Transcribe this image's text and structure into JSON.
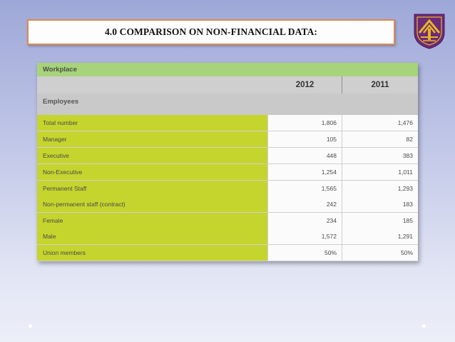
{
  "slide": {
    "title": "4.0 COMPARISON ON NON-FINANCIAL DATA:"
  },
  "logo": {
    "icon": "university-crest-icon",
    "colors": {
      "primary": "#6b2a7a",
      "accent": "#e8b422"
    }
  },
  "table": {
    "section_header": "Workplace",
    "columns": [
      "2012",
      "2011"
    ],
    "group_header": "Employees",
    "rows": [
      {
        "label": "Total number",
        "v2012": "1,806",
        "v2011": "1,476"
      },
      {
        "label": "Manager",
        "v2012": "105",
        "v2011": "82"
      },
      {
        "label": "Executive",
        "v2012": "448",
        "v2011": "383"
      },
      {
        "label": "Non-Executive",
        "v2012": "1,254",
        "v2011": "1,011"
      },
      {
        "label": "Permanent Staff",
        "v2012": "1,565",
        "v2011": "1,293"
      },
      {
        "label": "Non-permanent staff (contract)",
        "v2012": "242",
        "v2011": "183"
      },
      {
        "label": "Female",
        "v2012": "234",
        "v2011": "185"
      },
      {
        "label": "Male",
        "v2012": "1,572",
        "v2011": "1,291"
      },
      {
        "label": "Union members",
        "v2012": "50%",
        "v2011": "50%"
      }
    ],
    "colors": {
      "section_header_bg": "#a7d37a",
      "label_bg": "#c6d42e",
      "header_bg": "#cfcfcf"
    }
  }
}
